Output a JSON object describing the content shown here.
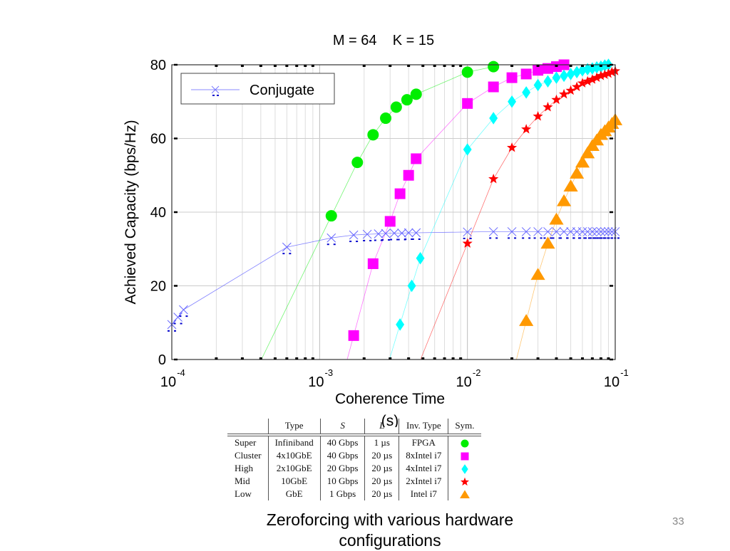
{
  "slide": {
    "caption": "Zeroforcing with various hardware configurations",
    "page_number": "33"
  },
  "chart_data": {
    "type": "line",
    "title": "M = 64    K = 15",
    "xlabel": "Coherence Time (s)",
    "ylabel": "Achieved Capacity (bps/Hz)",
    "xscale": "log",
    "xlim": [
      0.0001,
      0.1
    ],
    "ylim": [
      0,
      80
    ],
    "grid": true,
    "x_ticks": [
      {
        "base": "10",
        "exp": "-4",
        "value": 0.0001
      },
      {
        "base": "10",
        "exp": "-3",
        "value": 0.001
      },
      {
        "base": "10",
        "exp": "-2",
        "value": 0.01
      },
      {
        "base": "10",
        "exp": "-1",
        "value": 0.1
      }
    ],
    "y_ticks": [
      0,
      20,
      40,
      60,
      80
    ],
    "legend": {
      "placement": "top-left",
      "entries": [
        "Conjugate"
      ]
    },
    "series": [
      {
        "name": "Conjugate",
        "marker": "x",
        "color": "#6666ff",
        "in_legend": true,
        "x": [
          0.0001,
          0.00011,
          0.00012,
          0.0006,
          0.0012,
          0.0017,
          0.0021,
          0.0025,
          0.0028,
          0.0032,
          0.0036,
          0.004,
          0.0045,
          0.01,
          0.015,
          0.02,
          0.025,
          0.03,
          0.035,
          0.04,
          0.045,
          0.05,
          0.055,
          0.06,
          0.065,
          0.07,
          0.075,
          0.08,
          0.085,
          0.09,
          0.095,
          0.1
        ],
        "y": [
          9.5,
          11.5,
          13.5,
          30.5,
          33,
          33.8,
          34,
          34.1,
          34.2,
          34.3,
          34.3,
          34.4,
          34.4,
          34.6,
          34.7,
          34.7,
          34.7,
          34.7,
          34.7,
          34.7,
          34.7,
          34.7,
          34.7,
          34.7,
          34.7,
          34.7,
          34.7,
          34.7,
          34.7,
          34.7,
          34.7,
          34.7
        ]
      },
      {
        "name": "Super",
        "marker": "circle",
        "color": "#00ee00",
        "in_legend": false,
        "x": [
          0.0012,
          0.0018,
          0.0023,
          0.0028,
          0.0033,
          0.0039,
          0.0045,
          0.01,
          0.015
        ],
        "y": [
          39,
          53.5,
          61,
          65.5,
          68.5,
          70.5,
          72,
          78,
          79.5
        ]
      },
      {
        "name": "Cluster",
        "marker": "square",
        "color": "#ff00ff",
        "in_legend": false,
        "x": [
          0.0017,
          0.0023,
          0.003,
          0.0035,
          0.004,
          0.0045,
          0.01,
          0.015,
          0.02,
          0.025,
          0.03,
          0.035,
          0.04,
          0.045
        ],
        "y": [
          6.5,
          26,
          37.5,
          45,
          50,
          54.5,
          69.5,
          74,
          76.5,
          77.5,
          78.5,
          79,
          79.5,
          80
        ]
      },
      {
        "name": "High",
        "marker": "diamond",
        "color": "#00ffff",
        "in_legend": false,
        "x": [
          0.0035,
          0.0042,
          0.0048,
          0.01,
          0.015,
          0.02,
          0.025,
          0.03,
          0.035,
          0.04,
          0.045,
          0.05,
          0.055,
          0.06,
          0.065,
          0.07,
          0.075,
          0.08,
          0.085,
          0.09
        ],
        "y": [
          9.5,
          20,
          27.5,
          57,
          65.5,
          70,
          72.5,
          74.5,
          75.5,
          76.5,
          77,
          77.5,
          78,
          78.5,
          78.8,
          79,
          79.3,
          79.5,
          79.8,
          80
        ]
      },
      {
        "name": "Mid",
        "marker": "star",
        "color": "#ff0000",
        "in_legend": false,
        "x": [
          0.01,
          0.015,
          0.02,
          0.025,
          0.03,
          0.035,
          0.04,
          0.045,
          0.05,
          0.055,
          0.06,
          0.065,
          0.07,
          0.075,
          0.08,
          0.085,
          0.09,
          0.095,
          0.1
        ],
        "y": [
          31.5,
          49,
          57.5,
          62.5,
          66,
          68.5,
          70.5,
          72,
          73,
          74,
          75,
          75.5,
          76,
          76.5,
          77,
          77.3,
          77.6,
          78,
          78.3
        ]
      },
      {
        "name": "Low",
        "marker": "triangle",
        "color": "#ff9900",
        "in_legend": false,
        "x": [
          0.025,
          0.03,
          0.035,
          0.04,
          0.045,
          0.05,
          0.055,
          0.06,
          0.065,
          0.07,
          0.075,
          0.08,
          0.085,
          0.09,
          0.095,
          0.1
        ],
        "y": [
          10.5,
          23,
          31.5,
          38,
          43,
          47,
          50.5,
          53.5,
          56,
          58,
          59.5,
          61,
          62,
          63,
          64,
          65
        ]
      }
    ]
  },
  "table": {
    "headers": [
      "",
      "Type",
      "S",
      "L",
      "Inv. Type",
      "Sym."
    ],
    "rows": [
      {
        "name": "Super",
        "type": "Infiniband",
        "s": "40 Gbps",
        "l": "1 µs",
        "inv_type": "FPGA",
        "symbol": "circle",
        "color": "#00ee00"
      },
      {
        "name": "Cluster",
        "type": "4x10GbE",
        "s": "40 Gbps",
        "l": "20 µs",
        "inv_type": "8xIntel i7",
        "symbol": "square",
        "color": "#ff00ff"
      },
      {
        "name": "High",
        "type": "2x10GbE",
        "s": "20 Gbps",
        "l": "20 µs",
        "inv_type": "4xIntel i7",
        "symbol": "diamond",
        "color": "#00ffff"
      },
      {
        "name": "Mid",
        "type": "10GbE",
        "s": "10 Gbps",
        "l": "20 µs",
        "inv_type": "2xIntel i7",
        "symbol": "star",
        "color": "#ff0000"
      },
      {
        "name": "Low",
        "type": "GbE",
        "s": "1 Gbps",
        "l": "20 µs",
        "inv_type": "Intel i7",
        "symbol": "triangle",
        "color": "#ff9900"
      }
    ]
  }
}
